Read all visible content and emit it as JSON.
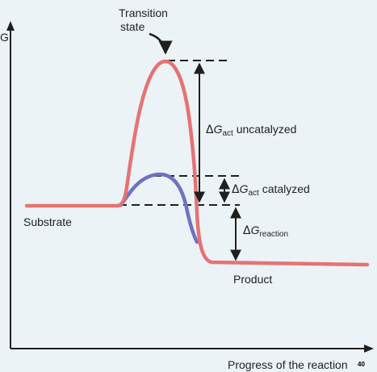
{
  "axes": {
    "y_label": "G",
    "x_label": "Progress of the reaction"
  },
  "labels": {
    "transition_state": [
      "Transition",
      "state"
    ],
    "substrate": "Substrate",
    "product": "Product",
    "dg_act_uncat": {
      "delta": "Δ",
      "G": "G",
      "sub": "act",
      "tail": " uncatalyzed"
    },
    "dg_act_cat": {
      "delta": "Δ",
      "G": "G",
      "sub": "act",
      "tail": " catalyzed"
    },
    "dg_reaction": {
      "delta": "Δ",
      "G": "G",
      "sub": "reaction",
      "tail": ""
    }
  },
  "page_number": "40",
  "colors": {
    "background": "#ecf3f6",
    "uncatalyzed_curve": "#e57373",
    "catalyzed_curve": "#6f72c2",
    "axis": "#1f1f1f"
  }
}
